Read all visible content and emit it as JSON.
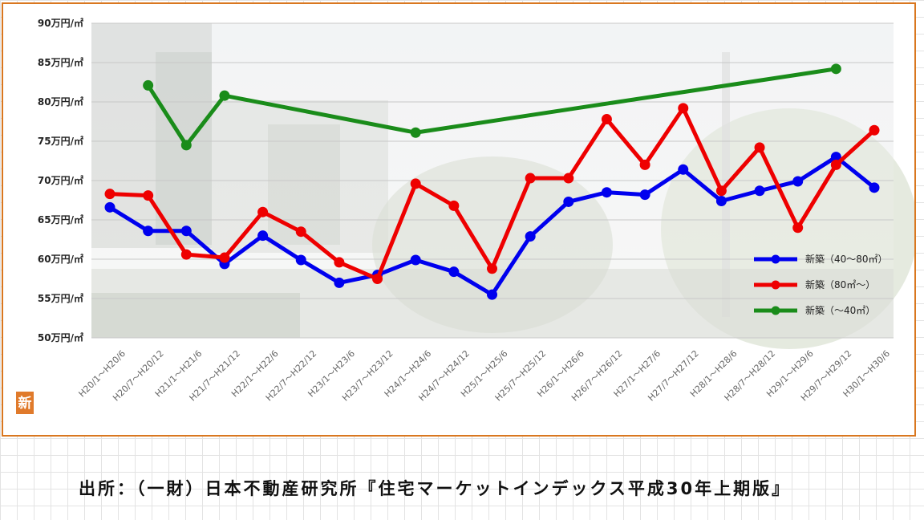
{
  "source_note": "出所：（一財）日本不動産研究所『住宅マーケットインデックス平成30年上期版』",
  "logo_char": "新",
  "chart_data": {
    "type": "line",
    "title": "",
    "xlabel": "",
    "ylabel": "",
    "ylim": [
      50,
      90
    ],
    "y_ticks": [
      {
        "value": 50,
        "label": "50万円/㎡"
      },
      {
        "value": 55,
        "label": "55万円/㎡"
      },
      {
        "value": 60,
        "label": "60万円/㎡"
      },
      {
        "value": 65,
        "label": "65万円/㎡"
      },
      {
        "value": 70,
        "label": "70万円/㎡"
      },
      {
        "value": 75,
        "label": "75万円/㎡"
      },
      {
        "value": 80,
        "label": "80万円/㎡"
      },
      {
        "value": 85,
        "label": "85万円/㎡"
      },
      {
        "value": 90,
        "label": "90万円/㎡"
      }
    ],
    "grid": true,
    "legend_position": "bottom-right",
    "categories": [
      "H20/1～H20/6",
      "H20/7～H20/12",
      "H21/1～H21/6",
      "H21/7～H21/12",
      "H22/1～H22/6",
      "H22/7～H22/12",
      "H23/1～H23/6",
      "H23/7～H23/12",
      "H24/1～H24/6",
      "H24/7～H24/12",
      "H25/1～H25/6",
      "H25/7～H25/12",
      "H26/1～H26/6",
      "H26/7～H26/12",
      "H27/1～H27/6",
      "H27/7～H27/12",
      "H28/1～H28/6",
      "H28/7～H28/12",
      "H29/1～H29/6",
      "H29/7～H29/12",
      "H30/1～H30/6"
    ],
    "series": [
      {
        "name": "新築（40～80㎡）",
        "color": "#0000ee",
        "values": [
          66.6,
          63.6,
          63.6,
          59.4,
          63.0,
          59.9,
          57.0,
          58.0,
          59.9,
          58.4,
          55.5,
          62.9,
          67.3,
          68.5,
          68.2,
          71.4,
          67.4,
          68.7,
          69.9,
          73.0,
          69.1
        ]
      },
      {
        "name": "新築（80㎡～）",
        "color": "#ee0000",
        "values": [
          68.3,
          68.1,
          60.6,
          60.2,
          66.0,
          63.5,
          59.6,
          57.5,
          69.6,
          66.8,
          58.8,
          70.3,
          70.3,
          77.8,
          72.0,
          79.2,
          68.7,
          74.2,
          64.0,
          72.0,
          76.4
        ]
      },
      {
        "name": "新築（～40㎡）",
        "color": "#1a8c1a",
        "values": [
          null,
          82.1,
          74.5,
          80.8,
          null,
          null,
          null,
          null,
          76.1,
          null,
          null,
          null,
          null,
          null,
          null,
          null,
          null,
          null,
          null,
          84.2,
          null
        ]
      }
    ]
  }
}
